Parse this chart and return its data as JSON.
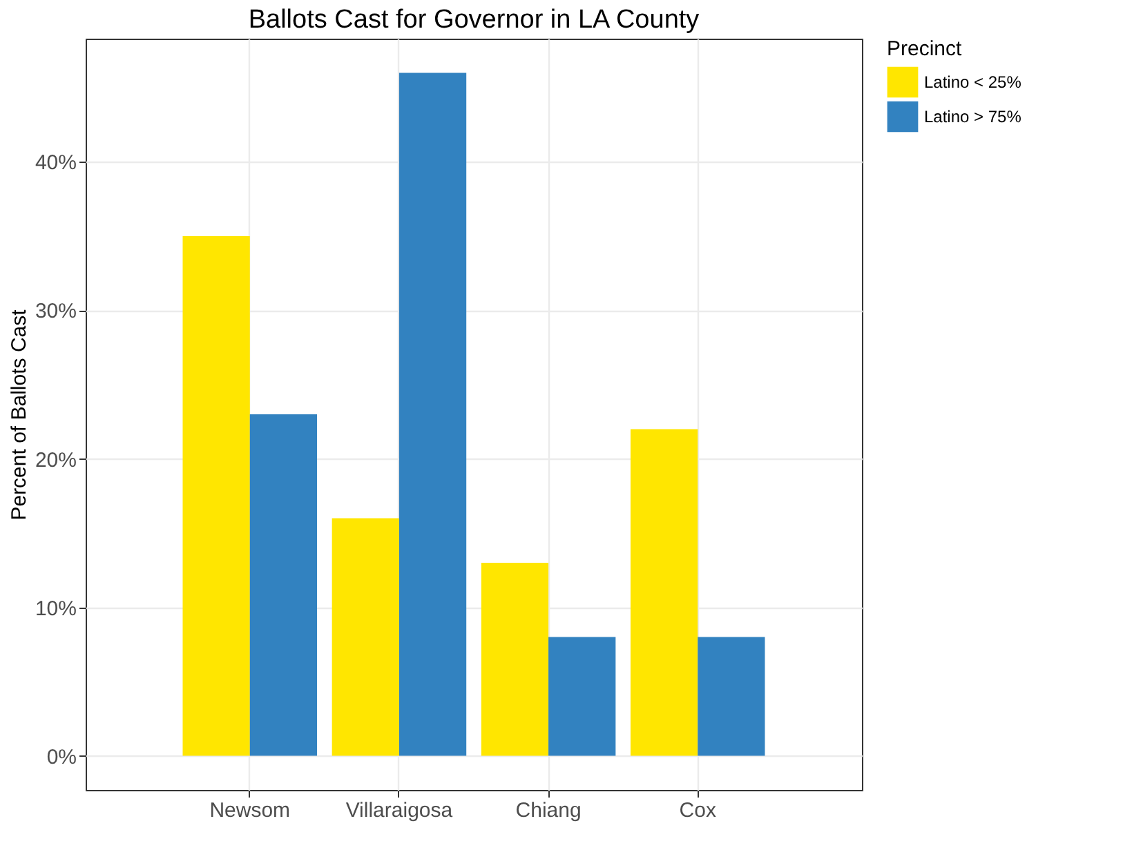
{
  "chart_data": {
    "type": "bar",
    "title": "Ballots Cast for Governor  in LA County",
    "ylabel": "Percent of Ballots Cast",
    "legend_title": "Precinct",
    "categories": [
      "Newsom",
      "Villaraigosa",
      "Chiang",
      "Cox"
    ],
    "series": [
      {
        "name": "Latino < 25%",
        "color": "#ffe600",
        "values": [
          35,
          16,
          13,
          22
        ]
      },
      {
        "name": "Latino > 75%",
        "color": "#3282c0",
        "values": [
          23,
          46,
          8,
          8
        ]
      }
    ],
    "ylim": [
      -2.3,
      48.3
    ],
    "yticks": [
      {
        "value": 0,
        "label": "0%"
      },
      {
        "value": 10,
        "label": "10%"
      },
      {
        "value": 20,
        "label": "20%"
      },
      {
        "value": 30,
        "label": "30%"
      },
      {
        "value": 40,
        "label": "40%"
      }
    ],
    "grid": true,
    "legend": "right"
  }
}
